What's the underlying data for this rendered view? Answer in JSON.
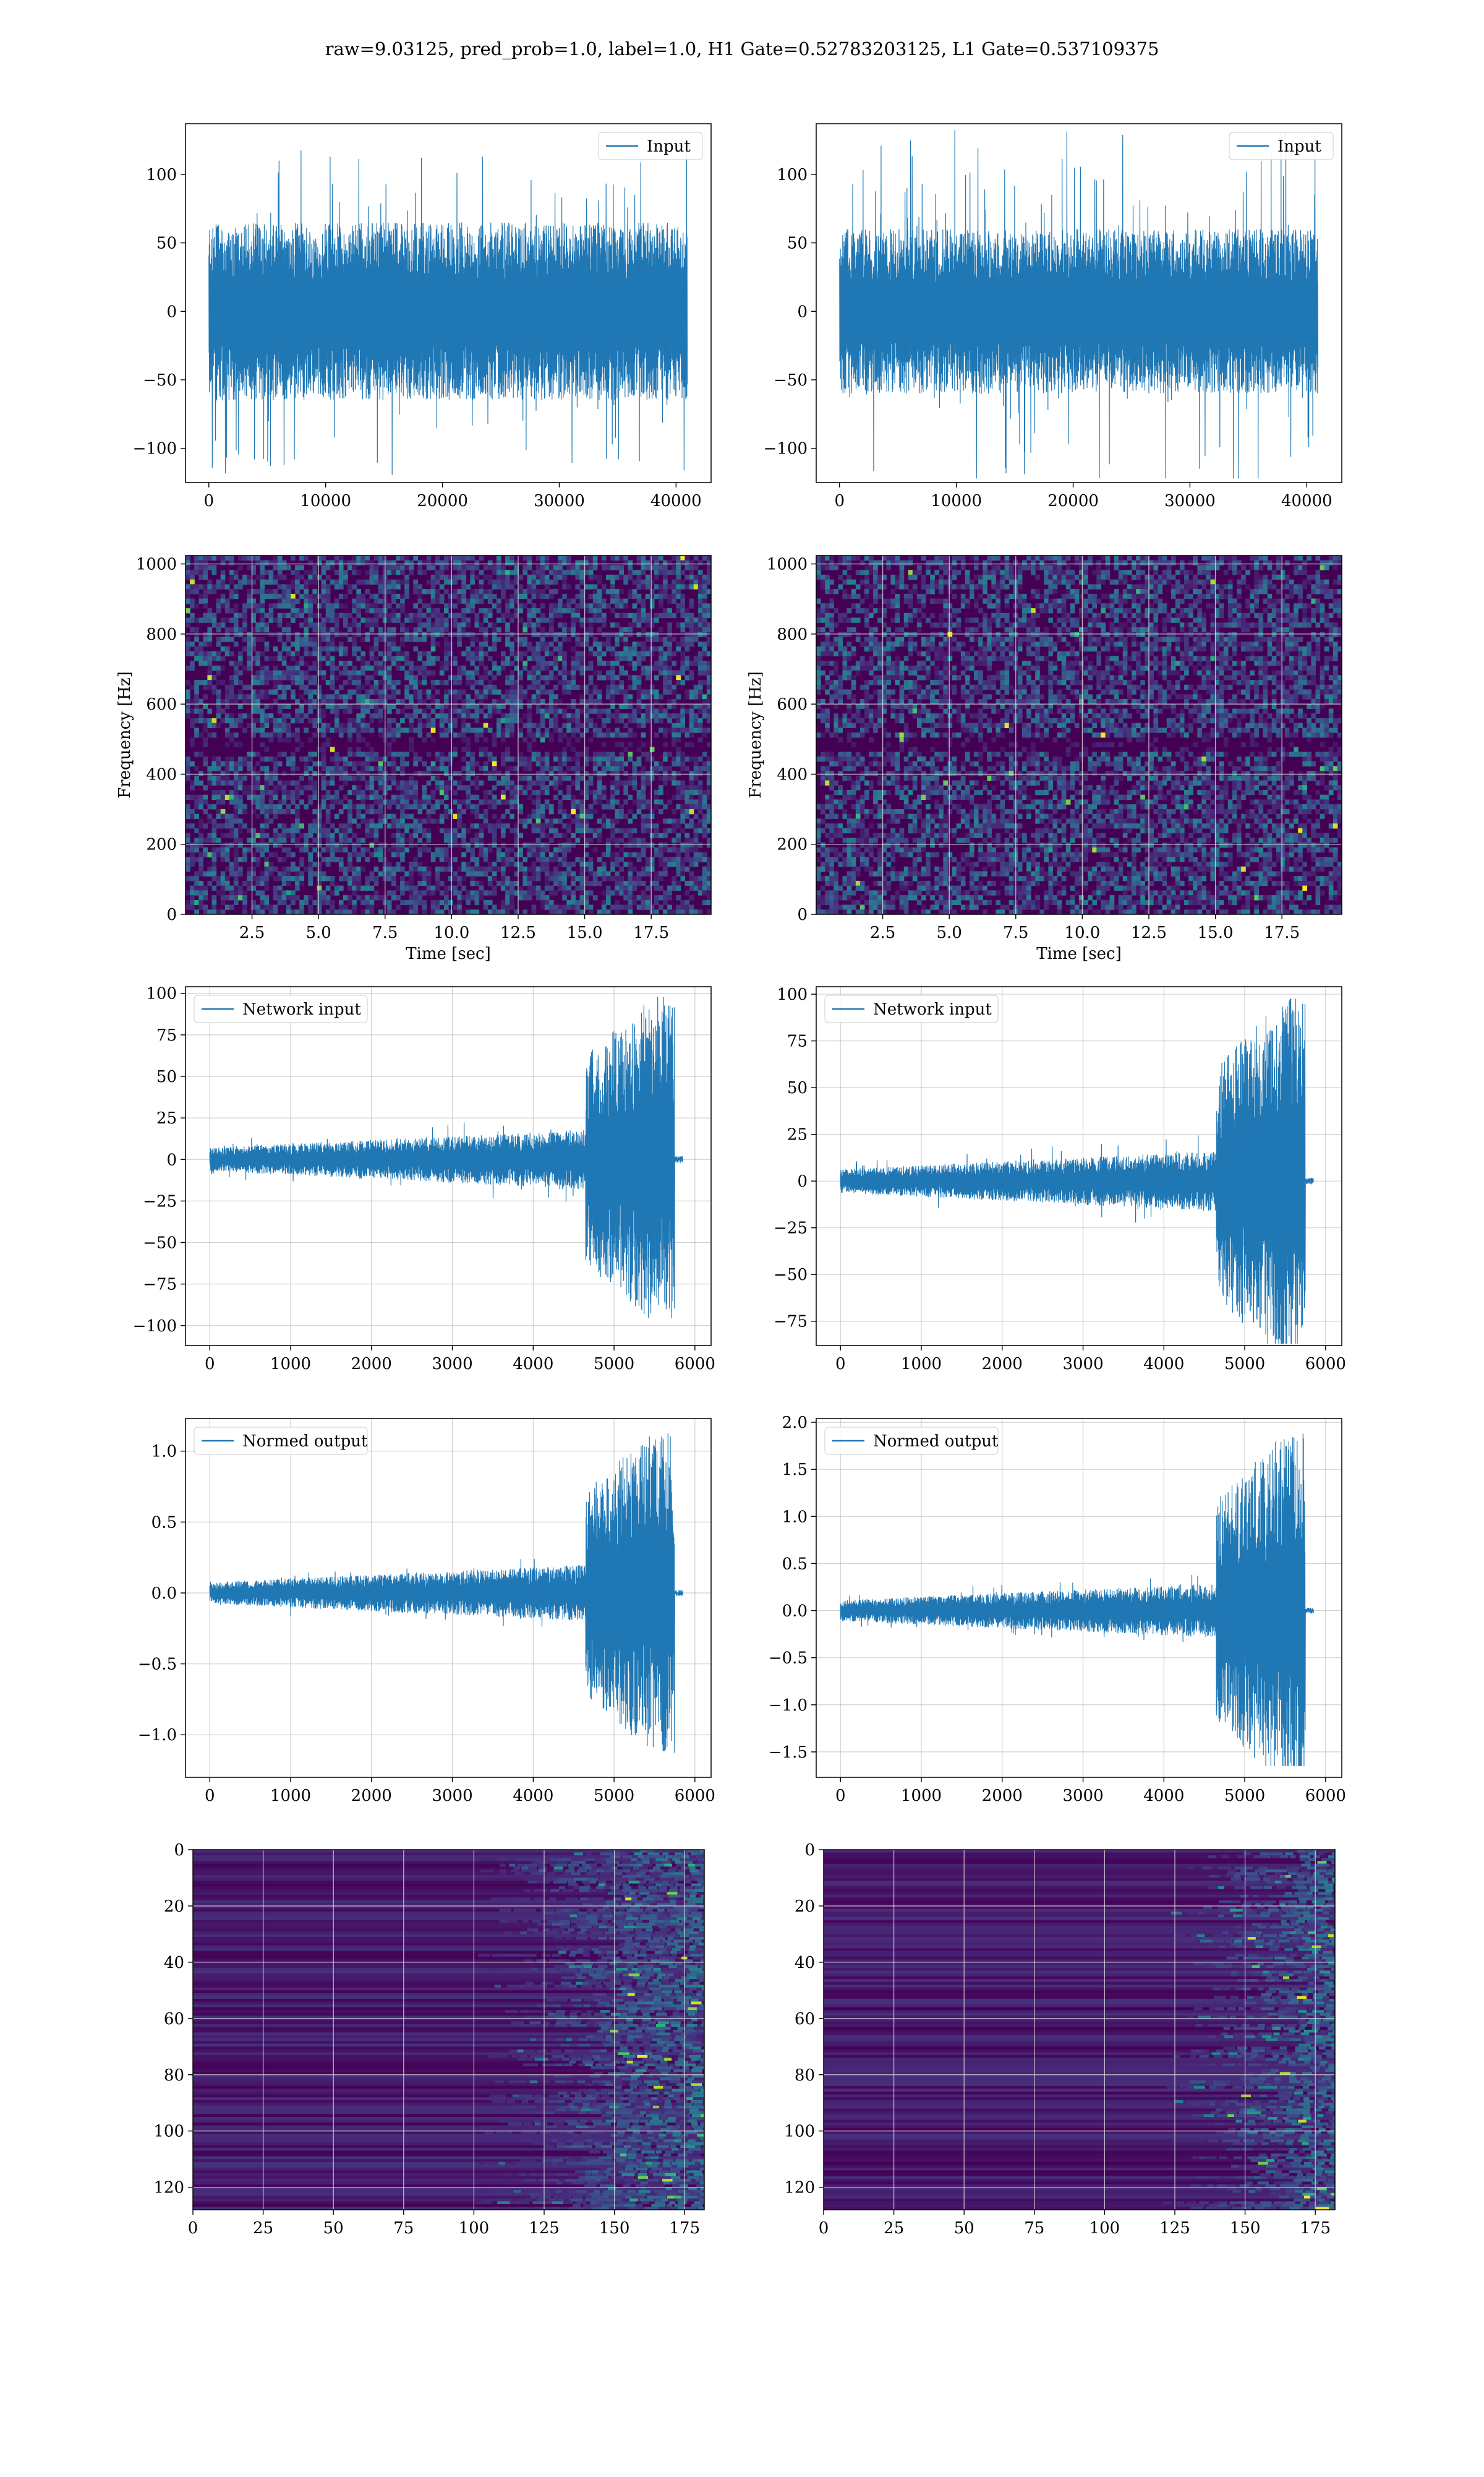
{
  "title": "raw=9.03125, pred_prob=1.0, label=1.0, H1 Gate=0.52783203125, L1 Gate=0.537109375",
  "colors": {
    "series": "#1f77b4",
    "grid": "#b0b0b0",
    "viridis_dark": "#440154",
    "viridis_mid": "#21918c",
    "viridis_bright": "#5ec962",
    "viridis_yellow": "#fde725"
  },
  "chart_data": [
    {
      "id": "input_left",
      "type": "line",
      "legend": [
        "Input"
      ],
      "legend_loc": "upper right",
      "xlim": [
        -2000,
        43000
      ],
      "ylim": [
        -125,
        137
      ],
      "xticks": [
        0,
        10000,
        20000,
        30000,
        40000
      ],
      "yticks": [
        -100,
        -50,
        0,
        50,
        100
      ],
      "grid": false,
      "series": [
        {
          "name": "Input",
          "x_range": [
            0,
            40960
          ],
          "band": [
            -65,
            65
          ],
          "extremes": [
            -120,
            120
          ]
        }
      ]
    },
    {
      "id": "input_right",
      "type": "line",
      "legend": [
        "Input"
      ],
      "legend_loc": "upper right",
      "xlim": [
        -2000,
        43000
      ],
      "ylim": [
        -125,
        137
      ],
      "xticks": [
        0,
        10000,
        20000,
        30000,
        40000
      ],
      "yticks": [
        -100,
        -50,
        0,
        50,
        100
      ],
      "grid": false,
      "series": [
        {
          "name": "Input",
          "x_range": [
            0,
            40960
          ],
          "band": [
            -60,
            60
          ],
          "extremes": [
            -122,
            133
          ]
        }
      ]
    },
    {
      "id": "spectrogram_left",
      "type": "heatmap",
      "xlabel": "Time [sec]",
      "ylabel": "Frequency [Hz]",
      "xlim": [
        0,
        19.75
      ],
      "ylim": [
        0,
        1024
      ],
      "xticks": [
        2.5,
        5.0,
        7.5,
        10.0,
        12.5,
        15.0,
        17.5
      ],
      "xtick_labels": [
        "2.5",
        "5.0",
        "7.5",
        "10.0",
        "12.5",
        "15.0",
        "17.5"
      ],
      "yticks": [
        0,
        200,
        400,
        600,
        800,
        1000
      ],
      "grid": true,
      "colormap": "viridis",
      "dark_band_hz": [
        465,
        505
      ]
    },
    {
      "id": "spectrogram_right",
      "type": "heatmap",
      "xlabel": "Time [sec]",
      "ylabel": "Frequency [Hz]",
      "xlim": [
        0,
        19.75
      ],
      "ylim": [
        0,
        1024
      ],
      "xticks": [
        2.5,
        5.0,
        7.5,
        10.0,
        12.5,
        15.0,
        17.5
      ],
      "xtick_labels": [
        "2.5",
        "5.0",
        "7.5",
        "10.0",
        "12.5",
        "15.0",
        "17.5"
      ],
      "yticks": [
        0,
        200,
        400,
        600,
        800,
        1000
      ],
      "grid": true,
      "colormap": "viridis",
      "dark_band_hz": [
        465,
        505
      ]
    },
    {
      "id": "network_input_left",
      "type": "line",
      "legend": [
        "Network input"
      ],
      "legend_loc": "upper left",
      "xlim": [
        -300,
        6200
      ],
      "ylim": [
        -112,
        104
      ],
      "xticks": [
        0,
        1000,
        2000,
        3000,
        4000,
        5000,
        6000
      ],
      "yticks": [
        -100,
        -75,
        -50,
        -25,
        0,
        25,
        50,
        75,
        100
      ],
      "grid": true,
      "series": [
        {
          "name": "Network input",
          "x_range": [
            0,
            5850
          ],
          "onset": 4650,
          "end": 5750,
          "base_amp": 20,
          "peak_amp": 98,
          "min": -102
        }
      ]
    },
    {
      "id": "network_input_right",
      "type": "line",
      "legend": [
        "Network input"
      ],
      "legend_loc": "upper left",
      "xlim": [
        -300,
        6200
      ],
      "ylim": [
        -88,
        104
      ],
      "xticks": [
        0,
        1000,
        2000,
        3000,
        4000,
        5000,
        6000
      ],
      "yticks": [
        -75,
        -50,
        -25,
        0,
        25,
        50,
        75,
        100
      ],
      "grid": true,
      "series": [
        {
          "name": "Network input",
          "x_range": [
            0,
            5850
          ],
          "onset": 4650,
          "end": 5750,
          "base_amp": 18,
          "peak_amp": 98,
          "min": -87
        }
      ]
    },
    {
      "id": "normed_output_left",
      "type": "line",
      "legend": [
        "Normed output"
      ],
      "legend_loc": "upper left",
      "xlim": [
        -300,
        6200
      ],
      "ylim": [
        -1.3,
        1.23
      ],
      "xticks": [
        0,
        1000,
        2000,
        3000,
        4000,
        5000,
        6000
      ],
      "yticks": [
        -1.0,
        -0.5,
        0.0,
        0.5,
        1.0
      ],
      "ytick_labels": [
        "−1.0",
        "−0.5",
        "0.0",
        "0.5",
        "1.0"
      ],
      "grid": true,
      "series": [
        {
          "name": "Normed output",
          "x_range": [
            0,
            5850
          ],
          "onset": 4650,
          "end": 5750,
          "base_amp": 0.22,
          "peak_amp": 1.14,
          "min": -1.22
        }
      ]
    },
    {
      "id": "normed_output_right",
      "type": "line",
      "legend": [
        "Normed output"
      ],
      "legend_loc": "upper left",
      "xlim": [
        -300,
        6200
      ],
      "ylim": [
        -1.77,
        2.04
      ],
      "xticks": [
        0,
        1000,
        2000,
        3000,
        4000,
        5000,
        6000
      ],
      "yticks": [
        -1.5,
        -1.0,
        -0.5,
        0.0,
        0.5,
        1.0,
        1.5,
        2.0
      ],
      "ytick_labels": [
        "−1.5",
        "−1.0",
        "−0.5",
        "0.0",
        "0.5",
        "1.0",
        "1.5",
        "2.0"
      ],
      "grid": true,
      "series": [
        {
          "name": "Normed output",
          "x_range": [
            0,
            5850
          ],
          "onset": 4650,
          "end": 5750,
          "base_amp": 0.32,
          "peak_amp": 1.88,
          "min": -1.65
        }
      ]
    },
    {
      "id": "feature_map_left",
      "type": "heatmap",
      "xlim": [
        0,
        182
      ],
      "ylim": [
        128,
        0
      ],
      "xticks": [
        0,
        25,
        50,
        75,
        100,
        125,
        150,
        175
      ],
      "yticks": [
        0,
        20,
        40,
        60,
        80,
        100,
        120
      ],
      "grid": true,
      "colormap": "viridis",
      "activity_onset_col": 100
    },
    {
      "id": "feature_map_right",
      "type": "heatmap",
      "xlim": [
        0,
        182
      ],
      "ylim": [
        128,
        0
      ],
      "xticks": [
        0,
        25,
        50,
        75,
        100,
        125,
        150,
        175
      ],
      "yticks": [
        0,
        20,
        40,
        60,
        80,
        100,
        120
      ],
      "grid": true,
      "colormap": "viridis",
      "activity_onset_col": 120
    }
  ]
}
